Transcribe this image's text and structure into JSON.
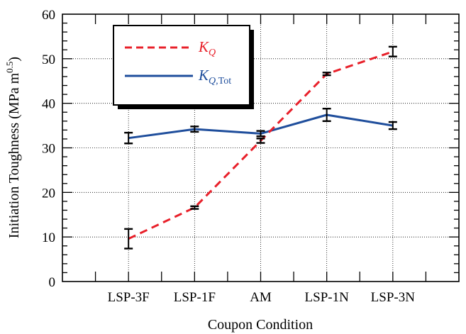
{
  "chart_data": {
    "type": "line",
    "xlabel": "Coupon Condition",
    "ylabel": "Initiation Toughness (MPa m",
    "ylabel_exponent": "0.5",
    "ylabel_close": ")",
    "categories": [
      "LSP-3F",
      "LSP-1F",
      "AM",
      "LSP-1N",
      "LSP-3N"
    ],
    "ylim": [
      0,
      60
    ],
    "yticks": [
      "0",
      "10",
      "20",
      "30",
      "40",
      "50",
      "60"
    ],
    "grid": true,
    "legend_position": "top-left",
    "series": [
      {
        "name": "KQ",
        "legend_main": "K",
        "legend_sub": "Q",
        "color": "#e8202a",
        "style": "dashed",
        "values": [
          9.6,
          16.6,
          31.6,
          46.6,
          51.6
        ],
        "error": [
          2.2,
          0.3,
          0.5,
          0.3,
          1.1
        ]
      },
      {
        "name": "KQ,Tot",
        "legend_main": "K",
        "legend_sub": "Q,",
        "legend_sub_roman": "Tot",
        "color": "#1f4e9c",
        "style": "solid",
        "values": [
          32.2,
          34.2,
          33.2,
          37.4,
          35.0
        ],
        "error": [
          1.2,
          0.6,
          0.6,
          1.4,
          0.8
        ]
      }
    ]
  }
}
